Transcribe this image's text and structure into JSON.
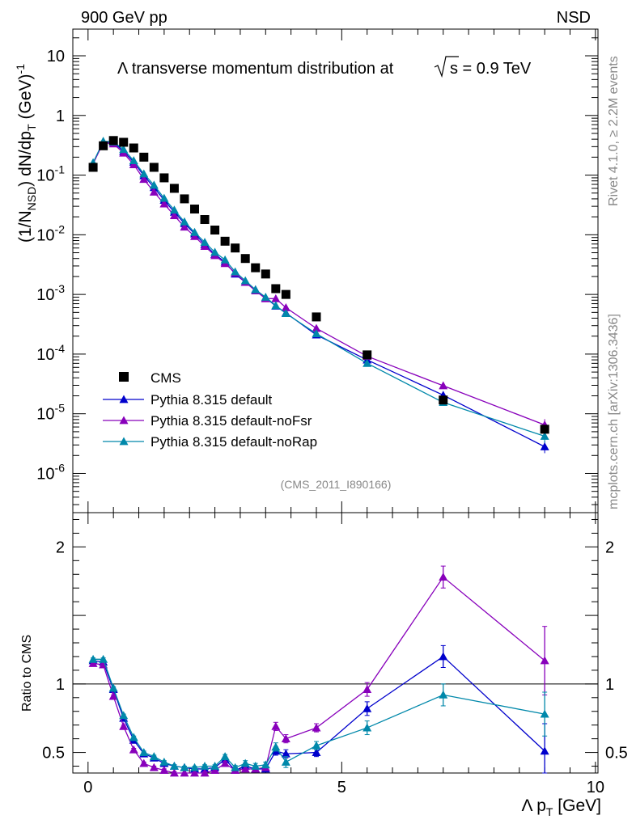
{
  "header": {
    "left": "900 GeV pp",
    "right": "NSD"
  },
  "side": {
    "rivet": "Rivet 4.1.0, ≥ 2.2M events",
    "mcplots": "mcplots.cern.ch [arXiv:1306.3436]"
  },
  "chart_data": {
    "type": "scatter",
    "title": "Λ transverse momentum distribution at √s = 0.9 TeV",
    "title_main": "Λ transverse momentum distribution at",
    "title_sqrt": "s",
    "title_rest": " = 0.9 TeV",
    "analysis_label": "(CMS_2011_I890166)",
    "xlabel": "Λ p_T [GeV]",
    "ylabel": "(1/N_NSD) dN/dp_T (GeV)^-1",
    "ratio_ylabel": "Ratio to CMS",
    "xlim": [
      -0.3,
      10.05
    ],
    "ylim": [
      2.2e-07,
      28
    ],
    "ratio_ylim": [
      0.35,
      2.25
    ],
    "x_ticks": [
      0,
      5,
      10
    ],
    "x_tick_labels": [
      "0",
      "5",
      "10"
    ],
    "y_ticks": [
      1e-06,
      1e-05,
      0.0001,
      0.001,
      0.01,
      0.1,
      1,
      10
    ],
    "y_tick_labels": [
      {
        "base": "10",
        "exp": "-6"
      },
      {
        "base": "10",
        "exp": "-5"
      },
      {
        "base": "10",
        "exp": "-4"
      },
      {
        "base": "10",
        "exp": "-3"
      },
      {
        "base": "10",
        "exp": "-2"
      },
      {
        "base": "10",
        "exp": "-1"
      },
      {
        "base": "1",
        "exp": ""
      },
      {
        "base": "10",
        "exp": ""
      }
    ],
    "ratio_ticks": [
      0.5,
      1,
      2
    ],
    "ratio_tick_labels": [
      "0.5",
      "1",
      "2"
    ],
    "legend_position": "bottom-left",
    "reference": {
      "name": "CMS",
      "color": "#000000",
      "x": [
        0.1,
        0.3,
        0.5,
        0.7,
        0.9,
        1.1,
        1.3,
        1.5,
        1.7,
        1.9,
        2.1,
        2.3,
        2.5,
        2.7,
        2.9,
        3.1,
        3.3,
        3.5,
        3.7,
        3.9,
        4.5,
        5.5,
        7.0,
        9.0
      ],
      "y": [
        0.135,
        0.31,
        0.38,
        0.355,
        0.285,
        0.2,
        0.135,
        0.09,
        0.06,
        0.04,
        0.027,
        0.018,
        0.012,
        0.0078,
        0.006,
        0.004,
        0.0028,
        0.0022,
        0.00125,
        0.001,
        0.00042,
        9.7e-05,
        1.7e-05,
        5.5e-06
      ]
    },
    "series": [
      {
        "name": "Pythia 8.315 default",
        "color": "#0000cc",
        "x": [
          0.1,
          0.3,
          0.5,
          0.7,
          0.9,
          1.1,
          1.3,
          1.5,
          1.7,
          1.9,
          2.1,
          2.3,
          2.5,
          2.7,
          2.9,
          3.1,
          3.3,
          3.5,
          3.7,
          3.9,
          4.5,
          5.5,
          7.0,
          9.0
        ],
        "y": [
          0.158,
          0.36,
          0.355,
          0.25,
          0.165,
          0.098,
          0.062,
          0.038,
          0.024,
          0.0155,
          0.0104,
          0.0069,
          0.0047,
          0.0035,
          0.0022,
          0.0016,
          0.0012,
          0.00088,
          0.00064,
          0.00049,
          0.00021,
          8e-05,
          2.05e-05,
          2.8e-06
        ],
        "ratio": [
          1.17,
          1.16,
          0.96,
          0.75,
          0.59,
          0.49,
          0.46,
          0.42,
          0.4,
          0.39,
          0.38,
          0.38,
          0.39,
          0.45,
          0.37,
          0.4,
          0.38,
          0.38,
          0.51,
          0.49,
          0.5,
          0.82,
          1.2,
          0.51
        ],
        "ratio_err": [
          0.01,
          0.01,
          0.01,
          0.01,
          0.01,
          0.01,
          0.01,
          0.01,
          0.01,
          0.01,
          0.01,
          0.01,
          0.01,
          0.015,
          0.015,
          0.02,
          0.02,
          0.02,
          0.03,
          0.03,
          0.03,
          0.05,
          0.08,
          0.2
        ]
      },
      {
        "name": "Pythia 8.315 default-noFsr",
        "color": "#8800bb",
        "x": [
          0.1,
          0.3,
          0.5,
          0.7,
          0.9,
          1.1,
          1.3,
          1.5,
          1.7,
          1.9,
          2.1,
          2.3,
          2.5,
          2.7,
          2.9,
          3.1,
          3.3,
          3.5,
          3.7,
          3.9,
          4.5,
          5.5,
          7.0,
          9.0
        ],
        "y": [
          0.155,
          0.35,
          0.335,
          0.235,
          0.15,
          0.085,
          0.052,
          0.033,
          0.021,
          0.0135,
          0.0094,
          0.0064,
          0.0045,
          0.0033,
          0.0023,
          0.0016,
          0.00115,
          0.00085,
          0.00085,
          0.0006,
          0.00027,
          9.2e-05,
          2.95e-05,
          6.5e-06
        ],
        "ratio": [
          1.15,
          1.14,
          0.91,
          0.69,
          0.52,
          0.42,
          0.39,
          0.37,
          0.35,
          0.34,
          0.34,
          0.35,
          0.37,
          0.42,
          0.37,
          0.38,
          0.38,
          0.39,
          0.69,
          0.6,
          0.68,
          0.96,
          1.78,
          1.17
        ],
        "ratio_err": [
          0.01,
          0.01,
          0.01,
          0.01,
          0.01,
          0.01,
          0.01,
          0.01,
          0.01,
          0.01,
          0.01,
          0.01,
          0.01,
          0.015,
          0.015,
          0.02,
          0.02,
          0.02,
          0.03,
          0.03,
          0.03,
          0.05,
          0.08,
          0.25
        ]
      },
      {
        "name": "Pythia 8.315 default-noRap",
        "color": "#0088aa",
        "x": [
          0.1,
          0.3,
          0.5,
          0.7,
          0.9,
          1.1,
          1.3,
          1.5,
          1.7,
          1.9,
          2.1,
          2.3,
          2.5,
          2.7,
          2.9,
          3.1,
          3.3,
          3.5,
          3.7,
          3.9,
          4.5,
          5.5,
          7.0,
          9.0
        ],
        "y": [
          0.162,
          0.37,
          0.36,
          0.27,
          0.175,
          0.105,
          0.068,
          0.041,
          0.026,
          0.0165,
          0.011,
          0.0075,
          0.0051,
          0.0038,
          0.0024,
          0.0017,
          0.0012,
          0.0009,
          0.00065,
          0.00048,
          0.00022,
          7e-05,
          1.55e-05,
          4.2e-06
        ],
        "ratio": [
          1.18,
          1.18,
          0.97,
          0.77,
          0.61,
          0.5,
          0.47,
          0.43,
          0.4,
          0.39,
          0.39,
          0.4,
          0.4,
          0.47,
          0.39,
          0.42,
          0.4,
          0.41,
          0.54,
          0.43,
          0.55,
          0.68,
          0.92,
          0.78
        ],
        "ratio_err": [
          0.01,
          0.01,
          0.01,
          0.01,
          0.01,
          0.01,
          0.01,
          0.01,
          0.01,
          0.01,
          0.01,
          0.01,
          0.01,
          0.015,
          0.015,
          0.02,
          0.02,
          0.02,
          0.03,
          0.04,
          0.03,
          0.05,
          0.08,
          0.16
        ]
      }
    ]
  }
}
